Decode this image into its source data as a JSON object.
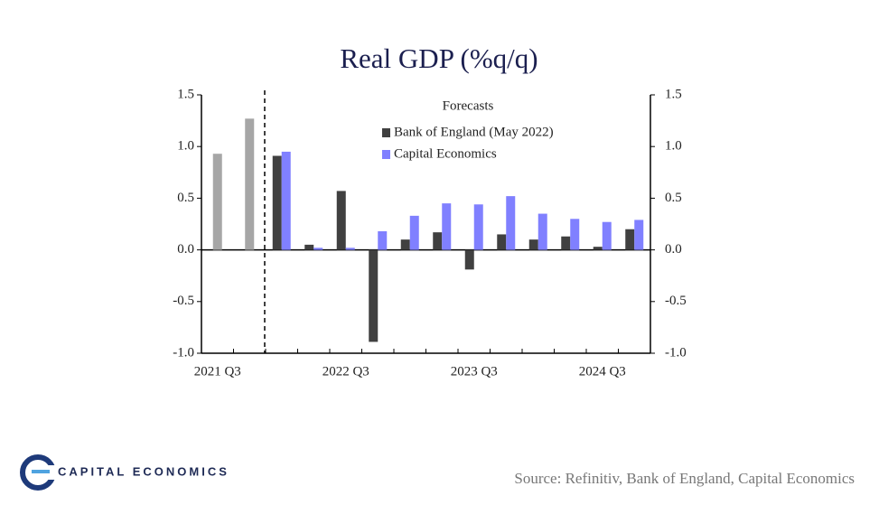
{
  "chart_data": {
    "type": "bar",
    "title": "Real GDP (%q/q)",
    "categories": [
      "2021 Q3",
      null,
      null,
      null,
      "2022 Q3",
      null,
      null,
      null,
      "2023 Q3",
      null,
      null,
      null,
      "2024 Q3",
      null
    ],
    "series": [
      {
        "color": "#a6a6a6",
        "values": [
          0.93,
          1.27,
          null,
          null,
          null,
          null,
          null,
          null,
          null,
          null,
          null,
          null,
          null,
          null
        ]
      },
      {
        "name": "Bank of England (May 2022)",
        "color": "#404040",
        "values": [
          null,
          null,
          0.91,
          0.05,
          0.57,
          -0.89,
          0.1,
          0.17,
          -0.19,
          0.15,
          0.1,
          0.13,
          0.03,
          0.2
        ]
      },
      {
        "name": "Capital Economics",
        "color": "#8080ff",
        "values": [
          null,
          null,
          0.95,
          0.02,
          0.02,
          0.18,
          0.33,
          0.45,
          0.44,
          0.52,
          0.35,
          0.3,
          0.27,
          0.29
        ]
      }
    ],
    "legend_title": "Forecasts",
    "ylim": [
      -1.0,
      1.5
    ],
    "yticks": [
      1.5,
      {
        "value": 1.0,
        "label": "1.0"
      },
      0.5,
      {
        "value": 0.0,
        "label": "0.0"
      },
      -0.5,
      {
        "value": -1.0,
        "label": "-1.0"
      }
    ],
    "y2lim": [
      -1.0,
      1.5
    ],
    "y2ticks": [
      1.5,
      {
        "value": 1.0,
        "label": "1.0"
      },
      0.5,
      {
        "value": 0.0,
        "label": "0.0"
      },
      -0.5,
      {
        "value": -1.0,
        "label": "-1.0"
      }
    ]
  },
  "footer": {
    "logo": "CAPITAL ECONOMICS",
    "source": "Source: Refinitiv, Bank of England, Capital Economics"
  }
}
